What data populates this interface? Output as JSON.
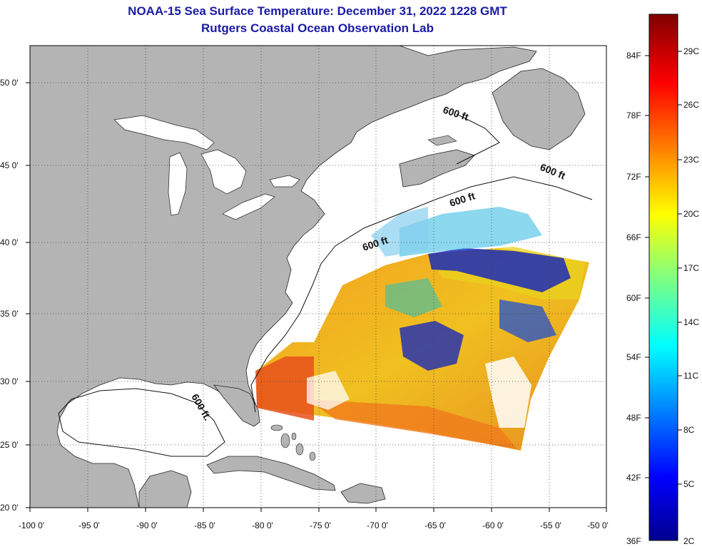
{
  "header": {
    "title": "NOAA-15 Sea Surface Temperature:  December 31, 2022 1228 GMT",
    "subtitle": "Rutgers Coastal Ocean Observation Lab"
  },
  "map": {
    "lon_range": [
      -100,
      -50
    ],
    "lat_range": [
      20,
      52.5
    ],
    "lon_ticks": [
      "-100 0'",
      "-95 0'",
      "-90 0'",
      "-85 0'",
      "-80 0'",
      "-75 0'",
      "-70 0'",
      "-65 0'",
      "-60 0'",
      "-55 0'",
      "-50 0'"
    ],
    "lat_ticks": [
      "20 0'",
      "25 0'",
      "30 0'",
      "35 0'",
      "40 0'",
      "45 0'",
      "50 0'"
    ],
    "contour_labels": [
      "600 ft",
      "600 ft",
      "600 ft",
      "600 ft",
      "600 ft."
    ],
    "colors": {
      "land": "#b4b4b4",
      "ocean": "#ffffff",
      "grid": "#444444"
    }
  },
  "colorbar": {
    "fahrenheit_labels": [
      "84F",
      "78F",
      "72F",
      "66F",
      "60F",
      "54F",
      "48F",
      "42F",
      "36F"
    ],
    "celsius_labels": [
      "29C",
      "26C",
      "23C",
      "20C",
      "17C",
      "14C",
      "11C",
      "8C",
      "5C",
      "2C"
    ]
  }
}
